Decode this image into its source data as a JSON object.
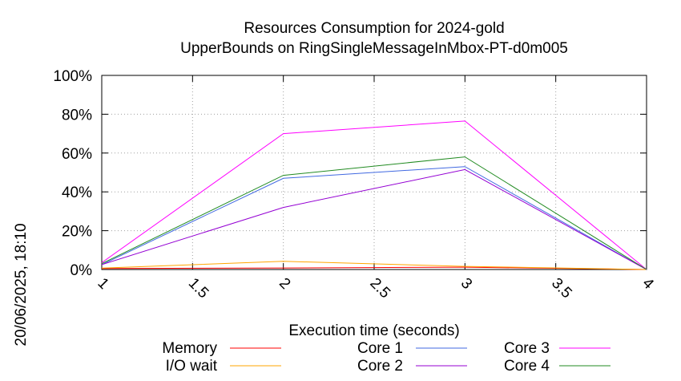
{
  "chart_data": {
    "type": "line",
    "title": "Resources Consumption for 2024-gold",
    "subtitle": "UpperBounds on RingSingleMessageInMbox-PT-d0m005",
    "xlabel": "Execution time (seconds)",
    "ylabel": "",
    "timestamp": "20/06/2025, 18:10",
    "xlim": [
      1,
      4
    ],
    "ylim": [
      0,
      100
    ],
    "x_ticks": [
      "1",
      "1.5",
      "2",
      "2.5",
      "3",
      "3.5",
      "4"
    ],
    "y_ticks": [
      "0%",
      "20%",
      "40%",
      "60%",
      "80%",
      "100%"
    ],
    "grid": true,
    "legend_position": "bottom",
    "x": [
      1,
      2,
      3,
      4
    ],
    "series": [
      {
        "name": "Memory",
        "color": "#ff0000",
        "values": [
          0.5,
          0.8,
          1.2,
          0
        ]
      },
      {
        "name": "I/O wait",
        "color": "#ffa500",
        "values": [
          0.7,
          4.2,
          1.6,
          0
        ]
      },
      {
        "name": "Core 1",
        "color": "#4169e1",
        "values": [
          2.5,
          47,
          53,
          0
        ]
      },
      {
        "name": "Core 2",
        "color": "#9400d3",
        "values": [
          2.5,
          32,
          51.5,
          0
        ]
      },
      {
        "name": "Core 3",
        "color": "#ff00ff",
        "values": [
          3.5,
          70,
          76.5,
          0
        ]
      },
      {
        "name": "Core 4",
        "color": "#228b22",
        "values": [
          3,
          48.5,
          58,
          0
        ]
      }
    ]
  }
}
